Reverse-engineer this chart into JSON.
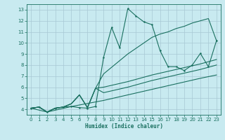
{
  "xlabel": "Humidex (Indice chaleur)",
  "bg_color": "#c8eaf0",
  "grid_color": "#a8c8d4",
  "line_color": "#1a7060",
  "xlim": [
    -0.5,
    23.5
  ],
  "ylim": [
    3.5,
    13.5
  ],
  "xticks": [
    0,
    1,
    2,
    3,
    4,
    5,
    6,
    7,
    8,
    9,
    10,
    11,
    12,
    13,
    14,
    15,
    16,
    17,
    18,
    19,
    20,
    21,
    22,
    23
  ],
  "yticks": [
    4,
    5,
    6,
    7,
    8,
    9,
    10,
    11,
    12,
    13
  ],
  "series_main": [
    [
      0,
      4.1
    ],
    [
      1,
      4.2
    ],
    [
      2,
      3.75
    ],
    [
      3,
      4.1
    ],
    [
      4,
      4.2
    ],
    [
      5,
      4.25
    ],
    [
      6,
      4.15
    ],
    [
      7,
      4.1
    ],
    [
      8,
      4.25
    ],
    [
      9,
      8.7
    ],
    [
      10,
      11.4
    ],
    [
      11,
      9.55
    ],
    [
      12,
      13.1
    ],
    [
      13,
      12.45
    ],
    [
      14,
      11.9
    ],
    [
      15,
      11.65
    ],
    [
      16,
      9.3
    ],
    [
      17,
      7.85
    ],
    [
      18,
      7.85
    ],
    [
      19,
      7.5
    ],
    [
      20,
      8.0
    ],
    [
      21,
      9.05
    ],
    [
      22,
      7.85
    ],
    [
      23,
      10.2
    ]
  ],
  "series_top": [
    [
      0,
      4.1
    ],
    [
      1,
      4.2
    ],
    [
      2,
      3.75
    ],
    [
      3,
      4.1
    ],
    [
      4,
      4.2
    ],
    [
      5,
      4.5
    ],
    [
      6,
      5.3
    ],
    [
      7,
      4.15
    ],
    [
      8,
      5.9
    ],
    [
      9,
      7.2
    ],
    [
      10,
      7.8
    ],
    [
      11,
      8.4
    ],
    [
      12,
      9.0
    ],
    [
      13,
      9.5
    ],
    [
      14,
      10.0
    ],
    [
      15,
      10.5
    ],
    [
      16,
      10.8
    ],
    [
      17,
      11.0
    ],
    [
      18,
      11.3
    ],
    [
      19,
      11.5
    ],
    [
      20,
      11.8
    ],
    [
      21,
      12.0
    ],
    [
      22,
      12.2
    ],
    [
      23,
      10.2
    ]
  ],
  "series_mid1": [
    [
      0,
      4.1
    ],
    [
      1,
      4.2
    ],
    [
      2,
      3.75
    ],
    [
      3,
      4.1
    ],
    [
      4,
      4.2
    ],
    [
      5,
      4.5
    ],
    [
      6,
      5.3
    ],
    [
      7,
      4.15
    ],
    [
      8,
      5.9
    ],
    [
      9,
      6.0
    ],
    [
      12,
      6.5
    ],
    [
      15,
      7.1
    ],
    [
      18,
      7.6
    ],
    [
      21,
      8.1
    ],
    [
      23,
      8.5
    ]
  ],
  "series_mid2": [
    [
      0,
      4.1
    ],
    [
      1,
      4.2
    ],
    [
      2,
      3.75
    ],
    [
      3,
      4.1
    ],
    [
      4,
      4.2
    ],
    [
      5,
      4.5
    ],
    [
      6,
      5.3
    ],
    [
      7,
      4.15
    ],
    [
      8,
      5.9
    ],
    [
      9,
      5.5
    ],
    [
      12,
      6.0
    ],
    [
      15,
      6.6
    ],
    [
      18,
      7.1
    ],
    [
      21,
      7.6
    ],
    [
      23,
      8.0
    ]
  ],
  "series_low": [
    [
      0,
      4.1
    ],
    [
      2,
      3.75
    ],
    [
      5,
      4.25
    ],
    [
      9,
      4.8
    ],
    [
      12,
      5.3
    ],
    [
      15,
      5.8
    ],
    [
      18,
      6.3
    ],
    [
      21,
      6.8
    ],
    [
      23,
      7.1
    ]
  ]
}
